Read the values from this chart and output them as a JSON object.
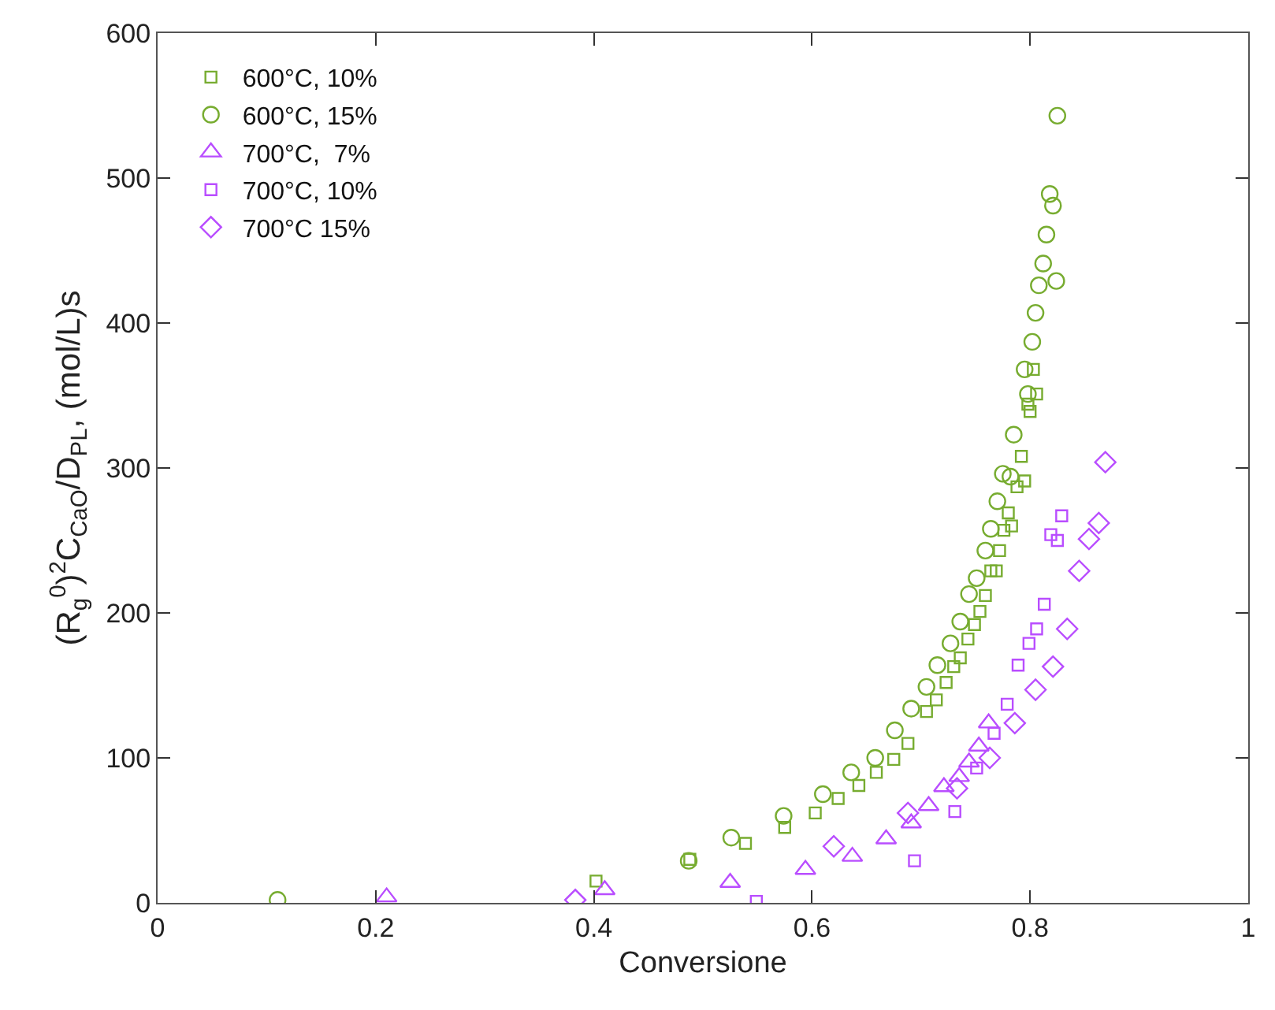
{
  "chart_data": {
    "type": "scatter",
    "xlabel": "Conversione",
    "ylabel": "(R$_{g}$$^{0}$)$^{2}$C$_{CaO}$/D$_{PL}$, (mol/L)s",
    "xlim": [
      0,
      1
    ],
    "ylim": [
      0,
      600
    ],
    "xticks": [
      0,
      0.2,
      0.4,
      0.6,
      0.8,
      1
    ],
    "yticks": [
      0,
      100,
      200,
      300,
      400,
      500,
      600
    ],
    "grid": false,
    "legend": "top left",
    "series": [
      {
        "name": "600°C, 10%",
        "color": "#77ac30",
        "marker": "square",
        "x": [
          0.402,
          0.488,
          0.539,
          0.575,
          0.603,
          0.624,
          0.643,
          0.659,
          0.675,
          0.688,
          0.705,
          0.714,
          0.723,
          0.73,
          0.736,
          0.743,
          0.749,
          0.754,
          0.759,
          0.764,
          0.769,
          0.772,
          0.776,
          0.783,
          0.78,
          0.788,
          0.795,
          0.792,
          0.8,
          0.798,
          0.806,
          0.803
        ],
        "values": [
          15,
          30,
          41,
          52,
          62,
          72,
          81,
          90,
          99,
          110,
          132,
          140,
          152,
          163,
          169,
          182,
          192,
          201,
          212,
          229,
          229,
          243,
          257,
          260,
          269,
          287,
          291,
          308,
          339,
          344,
          351,
          368
        ]
      },
      {
        "name": "600°C, 15%",
        "color": "#77ac30",
        "marker": "circle",
        "x": [
          0.11,
          0.487,
          0.526,
          0.574,
          0.61,
          0.636,
          0.658,
          0.676,
          0.691,
          0.705,
          0.715,
          0.727,
          0.736,
          0.744,
          0.751,
          0.759,
          0.764,
          0.77,
          0.775,
          0.782,
          0.785,
          0.795,
          0.798,
          0.802,
          0.805,
          0.808,
          0.824,
          0.812,
          0.815,
          0.818,
          0.821,
          0.825
        ],
        "values": [
          2,
          29,
          45,
          60,
          75,
          90,
          100,
          119,
          134,
          149,
          164,
          179,
          194,
          213,
          224,
          243,
          258,
          277,
          296,
          294,
          323,
          368,
          351,
          387,
          407,
          426,
          429,
          441,
          461,
          489,
          481,
          543
        ]
      },
      {
        "name": "700°C,  7%",
        "color": "#b94dff",
        "marker": "triangle",
        "x": [
          0.21,
          0.41,
          0.525,
          0.594,
          0.637,
          0.668,
          0.691,
          0.707,
          0.721,
          0.735,
          0.744,
          0.753,
          0.762
        ],
        "values": [
          4,
          9,
          14,
          23,
          32,
          44,
          55,
          67,
          80,
          87,
          97,
          108,
          124
        ]
      },
      {
        "name": "700°C, 10%",
        "color": "#b94dff",
        "marker": "square",
        "x": [
          0.549,
          0.694,
          0.731,
          0.751,
          0.767,
          0.779,
          0.789,
          0.799,
          0.806,
          0.813,
          0.825,
          0.819,
          0.829
        ],
        "values": [
          1,
          29,
          63,
          93,
          117,
          137,
          164,
          179,
          189,
          206,
          250,
          254,
          267
        ]
      },
      {
        "name": "700°C 15%",
        "color": "#b94dff",
        "marker": "diamond",
        "x": [
          0.383,
          0.62,
          0.688,
          0.733,
          0.763,
          0.786,
          0.805,
          0.821,
          0.834,
          0.845,
          0.854,
          0.863,
          0.869
        ],
        "values": [
          2,
          39,
          62,
          79,
          100,
          124,
          147,
          163,
          189,
          229,
          251,
          262,
          304
        ]
      }
    ]
  }
}
